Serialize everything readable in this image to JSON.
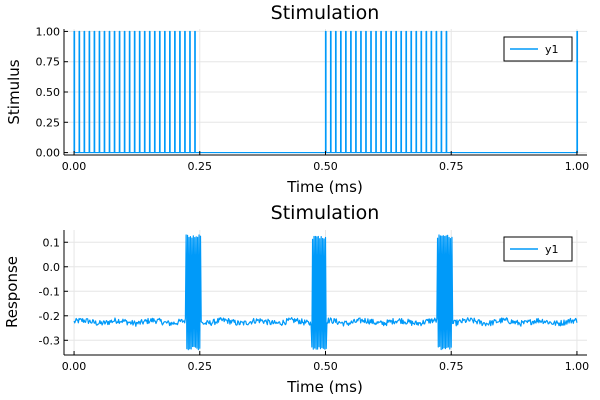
{
  "chart_data": [
    {
      "type": "line",
      "title": "Stimulation",
      "xlabel": "Time (ms)",
      "ylabel": "Stimulus",
      "xlim": [
        -0.02,
        1.02
      ],
      "ylim": [
        -0.02,
        1.02
      ],
      "x_ticks": [
        0.0,
        0.25,
        0.5,
        0.75,
        1.0
      ],
      "x_tick_labels": [
        "0.00",
        "0.25",
        "0.50",
        "0.75",
        "1.00"
      ],
      "y_ticks": [
        0.0,
        0.25,
        0.5,
        0.75,
        1.0
      ],
      "y_tick_labels": [
        "0.00",
        "0.25",
        "0.50",
        "0.75",
        "1.00"
      ],
      "grid": true,
      "legend_position": "top-right",
      "series": [
        {
          "name": "y1",
          "color": "#009af9",
          "pulse_bursts": [
            {
              "start": 0.0,
              "end": 0.24,
              "period": 0.01,
              "width": 0.001,
              "amplitude": 1.0
            },
            {
              "start": 0.5,
              "end": 0.74,
              "period": 0.01,
              "width": 0.001,
              "amplitude": 1.0
            },
            {
              "start": 1.0,
              "end": 1.0,
              "period": 0.01,
              "width": 0.001,
              "amplitude": 1.0
            }
          ],
          "baseline": 0.0
        }
      ]
    },
    {
      "type": "line",
      "title": "Stimulation",
      "xlabel": "Time (ms)",
      "ylabel": "Response",
      "xlim": [
        -0.02,
        1.02
      ],
      "ylim": [
        -0.36,
        0.15
      ],
      "x_ticks": [
        0.0,
        0.25,
        0.5,
        0.75,
        1.0
      ],
      "x_tick_labels": [
        "0.00",
        "0.25",
        "0.50",
        "0.75",
        "1.00"
      ],
      "y_ticks": [
        0.1,
        0.0,
        -0.1,
        -0.2,
        -0.3
      ],
      "y_tick_labels": [
        "0.1",
        "0.0",
        "-0.1",
        "-0.2",
        "-0.3"
      ],
      "grid": true,
      "legend_position": "top-right",
      "series": [
        {
          "name": "y1",
          "color": "#009af9",
          "baseline": -0.225,
          "noise_amplitude": 0.012,
          "oscillation_bursts": [
            {
              "start": 0.222,
              "end": 0.252,
              "min": -0.34,
              "max": 0.13
            },
            {
              "start": 0.472,
              "end": 0.502,
              "min": -0.34,
              "max": 0.125
            },
            {
              "start": 0.722,
              "end": 0.752,
              "min": -0.34,
              "max": 0.13
            }
          ]
        }
      ]
    }
  ]
}
